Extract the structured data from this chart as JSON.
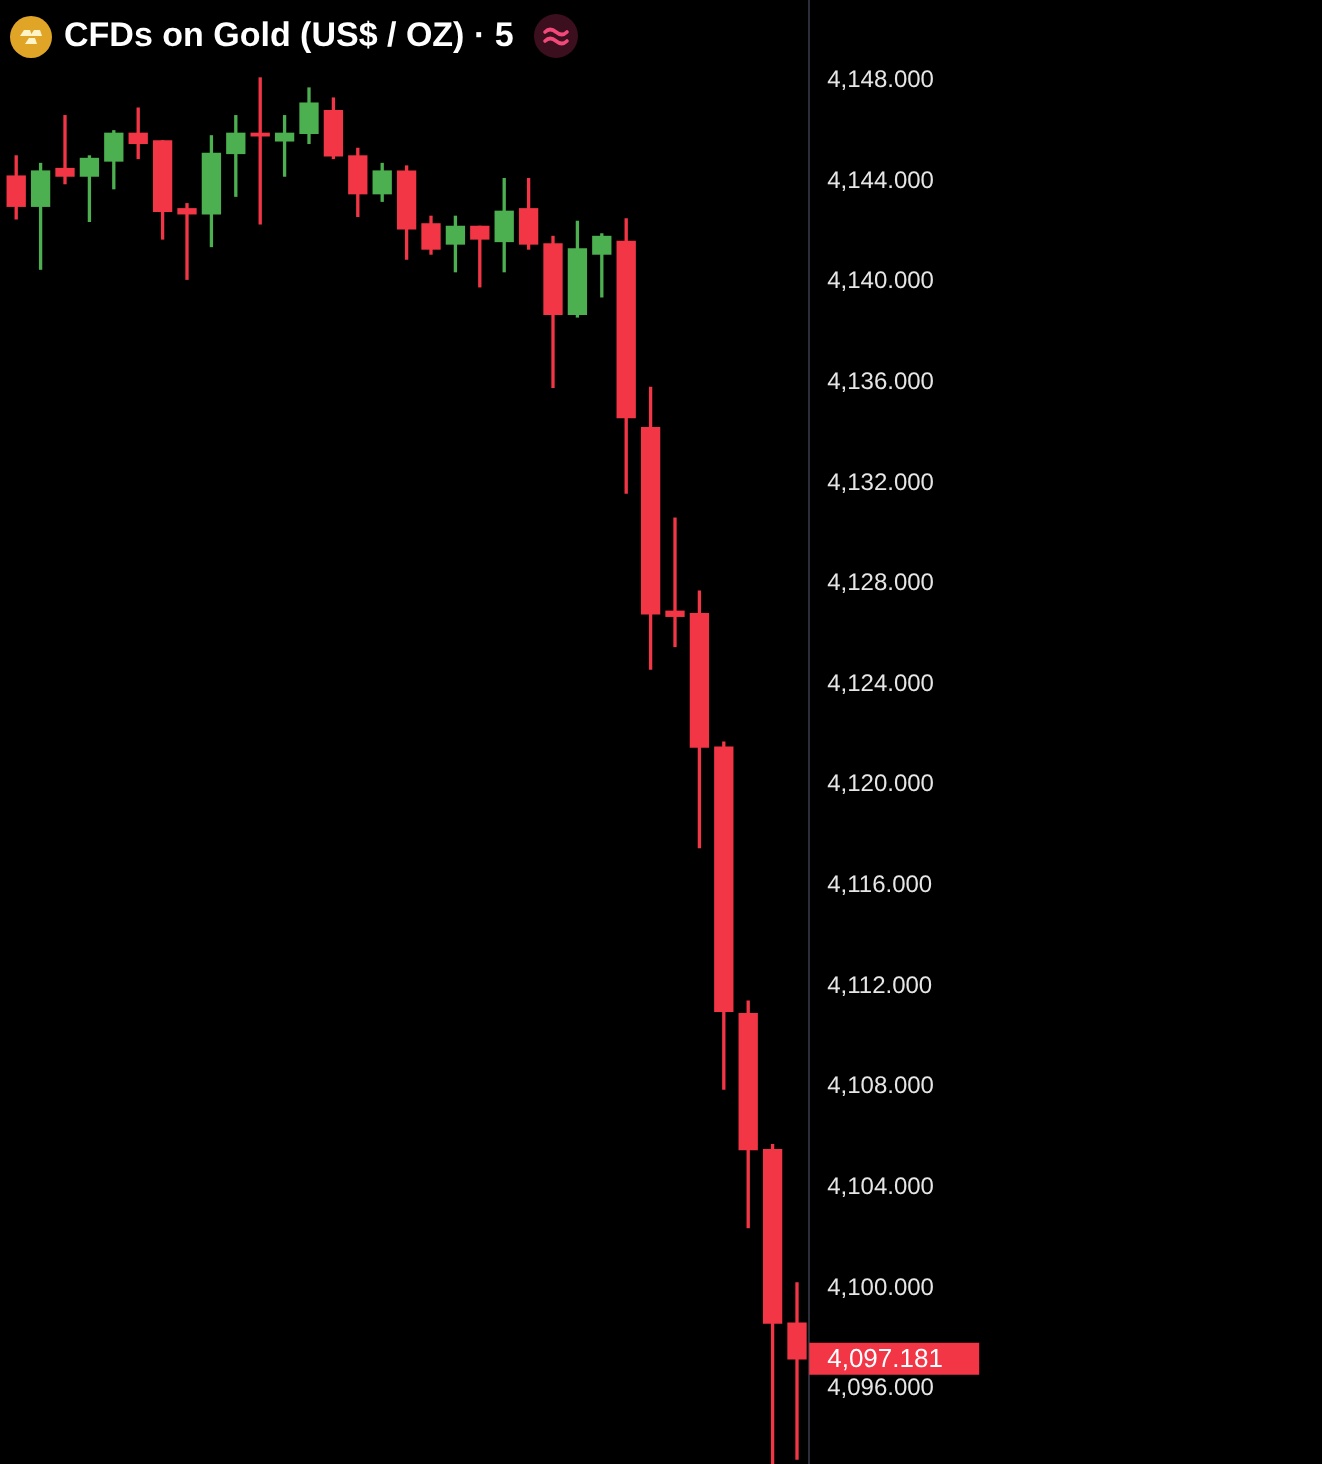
{
  "chart_data": {
    "type": "candlestick",
    "title": "CFDs on Gold (US$ / OZ) · 5",
    "categories": [
      null,
      null,
      null,
      null,
      null,
      null,
      null,
      null,
      null,
      null,
      null,
      null,
      null,
      null,
      null,
      null,
      null,
      null,
      null,
      null,
      null,
      null,
      null,
      null,
      null,
      null,
      null,
      null,
      null,
      null,
      null,
      null,
      null
    ],
    "ohlc": [
      [
        4144.2,
        4145.0,
        4142.5,
        4143.0
      ],
      [
        4143.0,
        4144.7,
        4140.5,
        4144.4
      ],
      [
        4144.5,
        4146.6,
        4143.9,
        4144.2
      ],
      [
        4144.2,
        4145.0,
        4142.4,
        4144.9
      ],
      [
        4144.8,
        4146.0,
        4143.7,
        4145.9
      ],
      [
        4145.9,
        4146.9,
        4144.9,
        4145.5
      ],
      [
        4145.6,
        4145.6,
        4141.7,
        4142.8
      ],
      [
        4142.9,
        4143.1,
        4140.1,
        4142.7
      ],
      [
        4142.7,
        4145.8,
        4141.4,
        4145.1
      ],
      [
        4145.1,
        4146.6,
        4143.4,
        4145.9
      ],
      [
        4145.9,
        4148.1,
        4142.3,
        4145.8
      ],
      [
        4145.6,
        4146.6,
        4144.2,
        4145.9
      ],
      [
        4145.9,
        4147.7,
        4145.5,
        4147.1
      ],
      [
        4146.8,
        4147.3,
        4144.9,
        4145.0
      ],
      [
        4145.0,
        4145.3,
        4142.6,
        4143.5
      ],
      [
        4143.5,
        4144.7,
        4143.2,
        4144.4
      ],
      [
        4144.4,
        4144.6,
        4140.9,
        4142.1
      ],
      [
        4142.3,
        4142.6,
        4141.1,
        4141.3
      ],
      [
        4141.5,
        4142.6,
        4140.4,
        4142.2
      ],
      [
        4142.2,
        4142.2,
        4139.8,
        4141.7
      ],
      [
        4141.6,
        4144.1,
        4140.4,
        4142.8
      ],
      [
        4142.9,
        4144.1,
        4141.3,
        4141.5
      ],
      [
        4141.5,
        4141.8,
        4135.8,
        4138.7
      ],
      [
        4138.7,
        4142.4,
        4138.6,
        4141.3
      ],
      [
        4141.1,
        4141.9,
        4139.4,
        4141.8
      ],
      [
        4141.6,
        4142.5,
        4131.6,
        4134.6
      ],
      [
        4134.2,
        4135.8,
        4124.6,
        4126.8
      ],
      [
        4126.9,
        4130.6,
        4125.5,
        4126.7
      ],
      [
        4126.8,
        4127.7,
        4117.5,
        4121.5
      ],
      [
        4121.5,
        4121.7,
        4107.9,
        4111.0
      ],
      [
        4110.9,
        4111.4,
        4102.4,
        4105.5
      ],
      [
        4105.5,
        4105.7,
        4093.0,
        4098.6
      ],
      [
        4098.6,
        4100.2,
        4093.2,
        4097.181
      ]
    ],
    "colors": [
      "#f23645",
      "#4caf50",
      "#f23645",
      "#4caf50",
      "#4caf50",
      "#f23645",
      "#f23645",
      "#f23645",
      "#4caf50",
      "#4caf50",
      "#f23645",
      "#4caf50",
      "#4caf50",
      "#f23645",
      "#f23645",
      "#4caf50",
      "#f23645",
      "#f23645",
      "#4caf50",
      "#f23645",
      "#4caf50",
      "#f23645",
      "#f23645",
      "#4caf50",
      "#4caf50",
      "#f23645",
      "#f23645",
      "#f23645",
      "#f23645",
      "#f23645",
      "#f23645",
      "#f23645",
      "#f23645"
    ],
    "ylim": [
      4093,
      4151.2
    ],
    "yticks": [
      {
        "value": 4096,
        "label": "4,096.000"
      },
      {
        "value": 4100,
        "label": "4,100.000"
      },
      {
        "value": 4104,
        "label": "4,104.000"
      },
      {
        "value": 4108,
        "label": "4,108.000"
      },
      {
        "value": 4112,
        "label": "4,112.000"
      },
      {
        "value": 4116,
        "label": "4,116.000"
      },
      {
        "value": 4120,
        "label": "4,120.000"
      },
      {
        "value": 4124,
        "label": "4,124.000"
      },
      {
        "value": 4128,
        "label": "4,128.000"
      },
      {
        "value": 4132,
        "label": "4,132.000"
      },
      {
        "value": 4136,
        "label": "4,136.000"
      },
      {
        "value": 4140,
        "label": "4,140.000"
      },
      {
        "value": 4144,
        "label": "4,144.000"
      },
      {
        "value": 4148,
        "label": "4,148.000"
      }
    ],
    "tick_labels": "y",
    "annotations": [
      "4,097.181"
    ]
  }
}
